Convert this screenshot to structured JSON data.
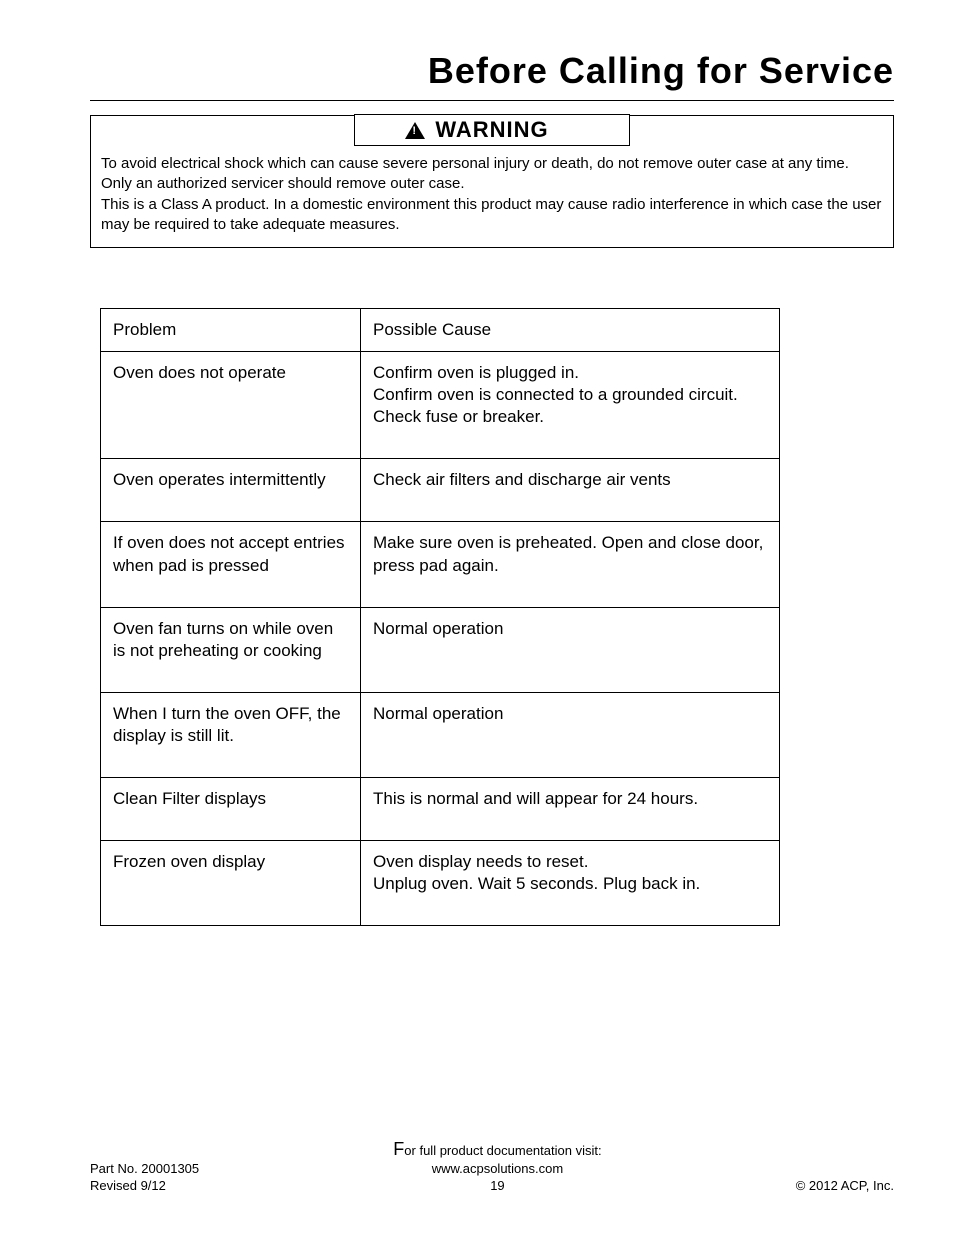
{
  "title": "Before Calling for Service",
  "warning": {
    "label": "WARNING",
    "paragraph1": "To avoid electrical shock which can cause severe personal injury or death, do not remove outer case at any time. Only an authorized servicer should remove outer case.",
    "paragraph2": "This is a Class A product. In a domestic environment this product may cause radio interference in which case the user may be required to take adequate measures."
  },
  "table": {
    "header_left": "Problem",
    "header_right": "Possible Cause",
    "rows": [
      {
        "problem": "Oven does not operate",
        "cause": "Confirm oven is plugged in.\nConfirm oven is connected to a grounded circuit.\nCheck fuse or breaker."
      },
      {
        "problem": "Oven operates intermittently",
        "cause": "Check air filters and discharge air vents"
      },
      {
        "problem": "If oven does not accept entries when pad is pressed",
        "cause": "Make sure oven is preheated. Open and close door, press pad again."
      },
      {
        "problem": "Oven fan turns on while oven is not preheating or cooking",
        "cause": "Normal operation"
      },
      {
        "problem": "When I turn the oven OFF, the display is still lit.",
        "cause": "Normal operation"
      },
      {
        "problem": "Clean Filter displays",
        "cause": "This is normal and will appear for 24 hours."
      },
      {
        "problem": "Frozen oven display",
        "cause": "Oven display needs to reset.\nUnplug oven. Wait 5 seconds. Plug back in."
      }
    ]
  },
  "footer": {
    "part_no": "Part No. 20001305",
    "revised": "Revised 9/12",
    "doc_line1_first": "F",
    "doc_line1_rest": "or full product documentation visit:",
    "doc_line2": "www.acpsolutions.com",
    "page_number": "19",
    "copyright": "© 2012 ACP, Inc."
  }
}
